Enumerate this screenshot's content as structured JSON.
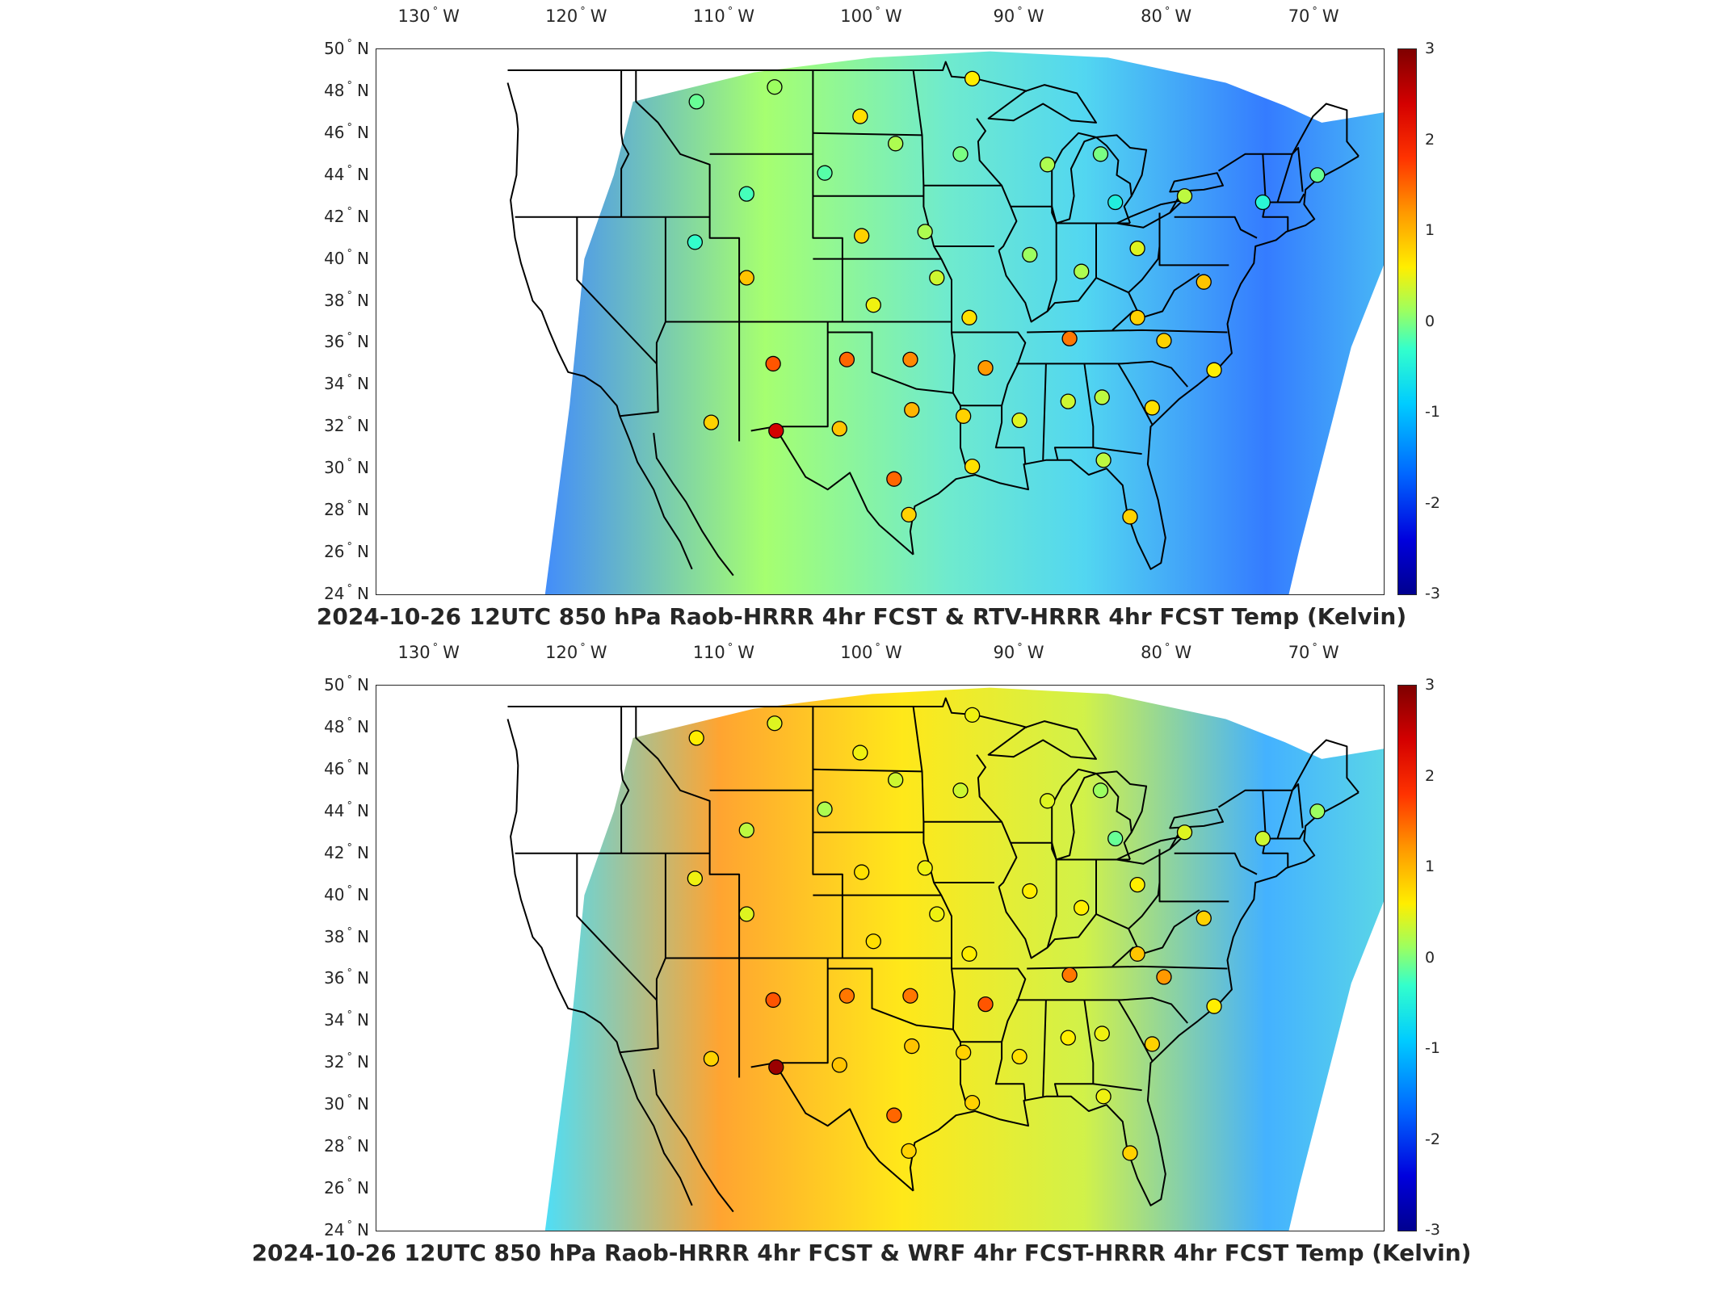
{
  "lon_ticks": [
    "130",
    "120",
    "110",
    "100",
    "90",
    "80",
    "70"
  ],
  "lon_hemisphere": "W",
  "lat_ticks": [
    "50",
    "48",
    "46",
    "44",
    "42",
    "40",
    "38",
    "36",
    "34",
    "32",
    "30",
    "28",
    "26",
    "24"
  ],
  "lat_hemisphere": "N",
  "colorbar_ticks": [
    "3",
    "2",
    "1",
    "0",
    "-1",
    "-2",
    "-3"
  ],
  "colorbar_range": [
    -3,
    3
  ],
  "colormap": [
    "#00008f",
    "#0000dd",
    "#0066ff",
    "#00ccff",
    "#33ffcc",
    "#9cff60",
    "#ffee00",
    "#ff9900",
    "#ff3300",
    "#d40000",
    "#7f0000"
  ],
  "panels": [
    {
      "title": "2024-10-26 12UTC 850 hPa Raob-HRRR 4hr FCST & RTV-HRRR 4hr FCST Temp (Kelvin)",
      "field_tone": "cool",
      "stations": [
        {
          "lon": -111.9,
          "lat": 47.5,
          "value": -0.3
        },
        {
          "lon": -106.6,
          "lat": 48.2,
          "value": 0.0
        },
        {
          "lon": -100.8,
          "lat": 46.8,
          "value": 0.7
        },
        {
          "lon": -98.4,
          "lat": 45.5,
          "value": 0.1
        },
        {
          "lon": -93.2,
          "lat": 48.6,
          "value": 0.6
        },
        {
          "lon": -94.0,
          "lat": 45.0,
          "value": -0.2
        },
        {
          "lon": -103.2,
          "lat": 44.1,
          "value": -0.4
        },
        {
          "lon": -108.5,
          "lat": 43.1,
          "value": -0.5
        },
        {
          "lon": -112.0,
          "lat": 40.8,
          "value": -0.6
        },
        {
          "lon": -100.7,
          "lat": 41.1,
          "value": 0.8
        },
        {
          "lon": -96.4,
          "lat": 41.3,
          "value": 0.1
        },
        {
          "lon": -108.5,
          "lat": 39.1,
          "value": 0.9
        },
        {
          "lon": -99.9,
          "lat": 37.8,
          "value": 0.5
        },
        {
          "lon": -95.6,
          "lat": 39.1,
          "value": 0.3
        },
        {
          "lon": -93.4,
          "lat": 37.2,
          "value": 0.7
        },
        {
          "lon": -89.3,
          "lat": 40.2,
          "value": 0.0
        },
        {
          "lon": -85.8,
          "lat": 39.4,
          "value": 0.1
        },
        {
          "lon": -88.1,
          "lat": 44.5,
          "value": 0.1
        },
        {
          "lon": -84.5,
          "lat": 45.0,
          "value": -0.2
        },
        {
          "lon": -83.5,
          "lat": 42.7,
          "value": -0.8
        },
        {
          "lon": -82.0,
          "lat": 40.5,
          "value": 0.4
        },
        {
          "lon": -78.8,
          "lat": 43.0,
          "value": 0.2
        },
        {
          "lon": -73.5,
          "lat": 42.7,
          "value": -0.7
        },
        {
          "lon": -69.8,
          "lat": 44.0,
          "value": -0.3
        },
        {
          "lon": -77.5,
          "lat": 38.9,
          "value": 0.9
        },
        {
          "lon": -82.0,
          "lat": 37.2,
          "value": 0.8
        },
        {
          "lon": -86.6,
          "lat": 36.2,
          "value": 1.4
        },
        {
          "lon": -80.2,
          "lat": 36.1,
          "value": 0.8
        },
        {
          "lon": -76.8,
          "lat": 34.7,
          "value": 0.6
        },
        {
          "lon": -106.7,
          "lat": 35.0,
          "value": 1.6
        },
        {
          "lon": -101.7,
          "lat": 35.2,
          "value": 1.5
        },
        {
          "lon": -97.4,
          "lat": 35.2,
          "value": 1.3
        },
        {
          "lon": -92.3,
          "lat": 34.8,
          "value": 1.2
        },
        {
          "lon": -110.9,
          "lat": 32.2,
          "value": 0.8
        },
        {
          "lon": -106.5,
          "lat": 31.8,
          "value": 2.4
        },
        {
          "lon": -102.2,
          "lat": 31.9,
          "value": 0.9
        },
        {
          "lon": -97.3,
          "lat": 32.8,
          "value": 1.0
        },
        {
          "lon": -93.8,
          "lat": 32.5,
          "value": 0.8
        },
        {
          "lon": -90.0,
          "lat": 32.3,
          "value": 0.4
        },
        {
          "lon": -86.7,
          "lat": 33.2,
          "value": 0.3
        },
        {
          "lon": -84.4,
          "lat": 33.4,
          "value": 0.2
        },
        {
          "lon": -81.0,
          "lat": 32.9,
          "value": 0.7
        },
        {
          "lon": -98.5,
          "lat": 29.5,
          "value": 1.5
        },
        {
          "lon": -97.5,
          "lat": 27.8,
          "value": 0.8
        },
        {
          "lon": -93.2,
          "lat": 30.1,
          "value": 0.7
        },
        {
          "lon": -84.3,
          "lat": 30.4,
          "value": 0.2
        },
        {
          "lon": -82.5,
          "lat": 27.7,
          "value": 0.8
        }
      ]
    },
    {
      "title": "2024-10-26 12UTC 850 hPa Raob-HRRR 4hr FCST & WRF 4hr FCST-HRRR 4hr FCST Temp (Kelvin)",
      "field_tone": "warm",
      "stations": [
        {
          "lon": -111.9,
          "lat": 47.5,
          "value": 0.6
        },
        {
          "lon": -106.6,
          "lat": 48.2,
          "value": 0.4
        },
        {
          "lon": -100.8,
          "lat": 46.8,
          "value": 0.5
        },
        {
          "lon": -98.4,
          "lat": 45.5,
          "value": 0.3
        },
        {
          "lon": -93.2,
          "lat": 48.6,
          "value": 0.5
        },
        {
          "lon": -94.0,
          "lat": 45.0,
          "value": 0.3
        },
        {
          "lon": -103.2,
          "lat": 44.1,
          "value": 0.1
        },
        {
          "lon": -108.5,
          "lat": 43.1,
          "value": 0.2
        },
        {
          "lon": -112.0,
          "lat": 40.8,
          "value": 0.5
        },
        {
          "lon": -100.7,
          "lat": 41.1,
          "value": 0.7
        },
        {
          "lon": -96.4,
          "lat": 41.3,
          "value": 0.5
        },
        {
          "lon": -108.5,
          "lat": 39.1,
          "value": 0.4
        },
        {
          "lon": -99.9,
          "lat": 37.8,
          "value": 0.7
        },
        {
          "lon": -95.6,
          "lat": 39.1,
          "value": 0.5
        },
        {
          "lon": -93.4,
          "lat": 37.2,
          "value": 0.6
        },
        {
          "lon": -89.3,
          "lat": 40.2,
          "value": 0.6
        },
        {
          "lon": -85.8,
          "lat": 39.4,
          "value": 0.6
        },
        {
          "lon": -88.1,
          "lat": 44.5,
          "value": 0.4
        },
        {
          "lon": -84.5,
          "lat": 45.0,
          "value": 0.0
        },
        {
          "lon": -83.5,
          "lat": 42.7,
          "value": -0.3
        },
        {
          "lon": -82.0,
          "lat": 40.5,
          "value": 0.6
        },
        {
          "lon": -78.8,
          "lat": 43.0,
          "value": 0.4
        },
        {
          "lon": -73.5,
          "lat": 42.7,
          "value": 0.3
        },
        {
          "lon": -69.8,
          "lat": 44.0,
          "value": 0.0
        },
        {
          "lon": -77.5,
          "lat": 38.9,
          "value": 0.8
        },
        {
          "lon": -82.0,
          "lat": 37.2,
          "value": 0.9
        },
        {
          "lon": -86.6,
          "lat": 36.2,
          "value": 1.4
        },
        {
          "lon": -80.2,
          "lat": 36.1,
          "value": 1.2
        },
        {
          "lon": -76.8,
          "lat": 34.7,
          "value": 0.6
        },
        {
          "lon": -106.7,
          "lat": 35.0,
          "value": 1.6
        },
        {
          "lon": -101.7,
          "lat": 35.2,
          "value": 1.4
        },
        {
          "lon": -97.4,
          "lat": 35.2,
          "value": 1.4
        },
        {
          "lon": -92.3,
          "lat": 34.8,
          "value": 1.6
        },
        {
          "lon": -110.9,
          "lat": 32.2,
          "value": 0.8
        },
        {
          "lon": -106.5,
          "lat": 31.8,
          "value": 2.8
        },
        {
          "lon": -102.2,
          "lat": 31.9,
          "value": 0.9
        },
        {
          "lon": -97.3,
          "lat": 32.8,
          "value": 0.9
        },
        {
          "lon": -93.8,
          "lat": 32.5,
          "value": 0.8
        },
        {
          "lon": -90.0,
          "lat": 32.3,
          "value": 0.7
        },
        {
          "lon": -86.7,
          "lat": 33.2,
          "value": 0.6
        },
        {
          "lon": -84.4,
          "lat": 33.4,
          "value": 0.5
        },
        {
          "lon": -81.0,
          "lat": 32.9,
          "value": 0.8
        },
        {
          "lon": -98.5,
          "lat": 29.5,
          "value": 1.5
        },
        {
          "lon": -97.5,
          "lat": 27.8,
          "value": 0.8
        },
        {
          "lon": -93.2,
          "lat": 30.1,
          "value": 0.8
        },
        {
          "lon": -84.3,
          "lat": 30.4,
          "value": 0.5
        },
        {
          "lon": -82.5,
          "lat": 27.7,
          "value": 0.8
        }
      ]
    }
  ]
}
